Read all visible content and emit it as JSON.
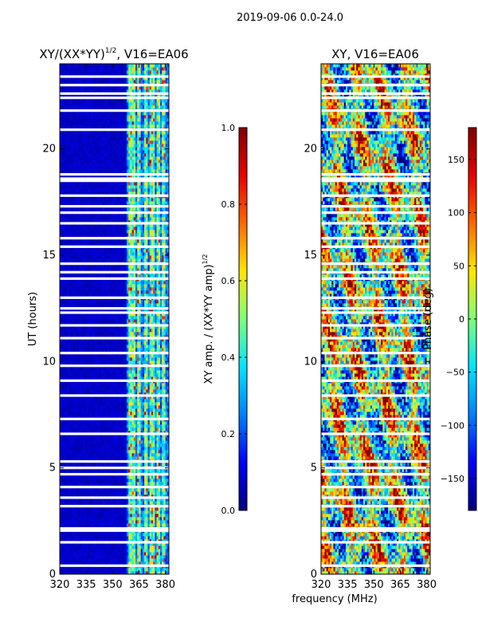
{
  "suptitle": "2019-09-06 0.0-24.0",
  "colormap_stops": [
    "#00007f",
    "#0000ff",
    "#0080ff",
    "#00e5ff",
    "#7dff7a",
    "#ffe600",
    "#ff6800",
    "#e80000",
    "#7f0000"
  ],
  "chart_data": [
    {
      "type": "heatmap",
      "title_main": "XY/(XX*YY)",
      "title_sup": "1/2",
      "title_tail": ", V16=EA06",
      "xlabel": "",
      "ylabel": "UT (hours)",
      "xlim": [
        320,
        382
      ],
      "ylim": [
        0,
        24
      ],
      "x_ticks": [
        320,
        335,
        350,
        365,
        380
      ],
      "y_ticks": [
        0,
        5,
        10,
        15,
        20
      ],
      "bright_channel_bands_mhz": [
        [
          359.5,
          362.5
        ],
        [
          364.0,
          366.0
        ],
        [
          368.0,
          369.5
        ],
        [
          371.5,
          373.5
        ],
        [
          375.0,
          377.0
        ],
        [
          378.5,
          379.5
        ]
      ],
      "flagged_hours": [
        0.4,
        1.5,
        2.05,
        2.15,
        3.2,
        3.6,
        4.1,
        4.7,
        5.0,
        5.3,
        6.6,
        7.3,
        8.4,
        9.1,
        9.8,
        10.4,
        11.1,
        11.7,
        12.3,
        12.5,
        13.0,
        13.9,
        14.2,
        14.6,
        15.4,
        15.8,
        16.5,
        17.0,
        17.3,
        17.8,
        18.5,
        18.6,
        18.8,
        20.9,
        21.8,
        22.4,
        22.6,
        23.0,
        23.4
      ]
    },
    {
      "type": "heatmap",
      "title_main": "XY, V16=EA06",
      "title_sup": "",
      "title_tail": "",
      "xlabel": "frequency (MHz)",
      "ylabel": "",
      "xlim": [
        320,
        382
      ],
      "ylim": [
        0,
        24
      ],
      "x_ticks": [
        320,
        335,
        350,
        365,
        380
      ],
      "y_ticks": [
        0,
        5,
        10,
        15,
        20
      ],
      "flagged_hours": [
        0.4,
        1.5,
        2.05,
        2.15,
        3.2,
        3.6,
        4.1,
        4.7,
        5.0,
        5.3,
        6.6,
        7.3,
        8.4,
        9.1,
        9.8,
        10.4,
        11.1,
        11.7,
        12.3,
        12.5,
        13.0,
        13.9,
        14.2,
        14.6,
        15.4,
        15.8,
        16.5,
        17.0,
        17.3,
        17.8,
        18.5,
        18.6,
        18.8,
        20.9,
        21.8,
        22.4,
        22.6,
        23.0,
        23.4
      ]
    }
  ],
  "colorbars": [
    {
      "label_main": "XY amp. / (XX*YY amp)",
      "label_sup": "1/2",
      "range": [
        0.0,
        1.0
      ],
      "tick_values": [
        0.0,
        0.2,
        0.4,
        0.6,
        0.8,
        1.0
      ],
      "tick_labels": [
        "0.0",
        "0.2",
        "0.4",
        "0.6",
        "0.8",
        "1.0"
      ]
    },
    {
      "label_main": "Phase (deg)",
      "label_sup": "",
      "range": [
        -180,
        180
      ],
      "tick_values": [
        -150,
        -100,
        -50,
        0,
        50,
        100,
        150
      ],
      "tick_labels": [
        "−150",
        "−100",
        "−50",
        "0",
        "50",
        "100",
        "150"
      ]
    }
  ]
}
